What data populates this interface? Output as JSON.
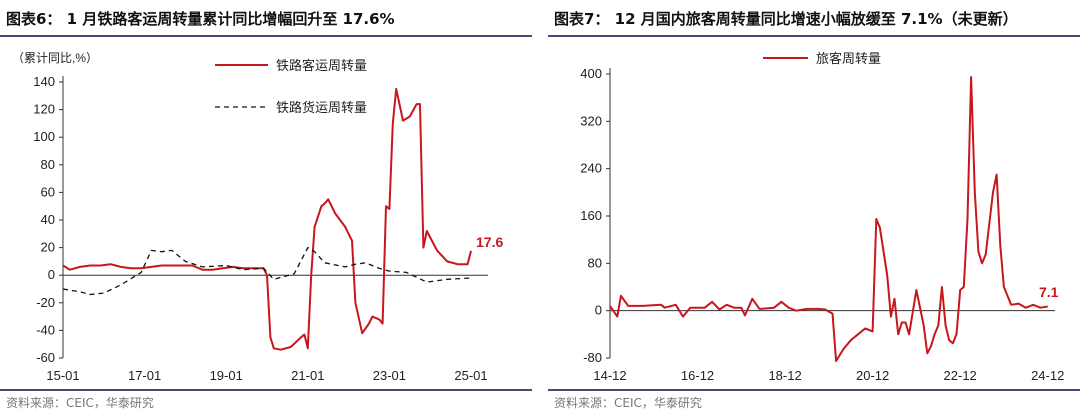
{
  "panels": [
    {
      "title": "图表6： 1 月铁路客运周转量累计同比增幅回升至 17.6%",
      "source": "资料来源：CEIC，华泰研究"
    },
    {
      "title": "图表7： 12 月国内旅客周转量同比增速小幅放缓至 7.1%（未更新）",
      "source": "资料来源：CEIC，华泰研究"
    }
  ],
  "chart_data": [
    {
      "type": "line",
      "unit_label": "（累计同比,%）",
      "x_ticks": [
        "15-01",
        "17-01",
        "19-01",
        "21-01",
        "23-01",
        "25-01"
      ],
      "ylim": [
        -60,
        140
      ],
      "y_ticks": [
        -60,
        -40,
        -20,
        0,
        20,
        40,
        60,
        80,
        100,
        120,
        140
      ],
      "legend_position": "top-right",
      "end_label": "17.6",
      "series": [
        {
          "name": "铁路客运周转量",
          "color": "#c8161d",
          "dash": false,
          "points": [
            [
              "2015-01",
              7
            ],
            [
              "2015-03",
              4
            ],
            [
              "2015-06",
              6
            ],
            [
              "2015-09",
              7
            ],
            [
              "2015-12",
              7
            ],
            [
              "2016-03",
              8
            ],
            [
              "2016-06",
              6
            ],
            [
              "2016-09",
              5
            ],
            [
              "2016-12",
              5
            ],
            [
              "2017-03",
              6
            ],
            [
              "2017-06",
              7
            ],
            [
              "2017-09",
              7
            ],
            [
              "2017-12",
              7
            ],
            [
              "2018-03",
              7
            ],
            [
              "2018-06",
              4
            ],
            [
              "2018-09",
              4
            ],
            [
              "2018-12",
              5
            ],
            [
              "2019-03",
              6
            ],
            [
              "2019-06",
              5
            ],
            [
              "2019-09",
              5
            ],
            [
              "2019-12",
              5
            ],
            [
              "2020-01",
              0
            ],
            [
              "2020-02",
              -45
            ],
            [
              "2020-03",
              -53
            ],
            [
              "2020-05",
              -54
            ],
            [
              "2020-08",
              -52
            ],
            [
              "2020-11",
              -45
            ],
            [
              "2020-12",
              -43
            ],
            [
              "2021-01",
              -53
            ],
            [
              "2021-02",
              0
            ],
            [
              "2021-03",
              35
            ],
            [
              "2021-05",
              50
            ],
            [
              "2021-06",
              52
            ],
            [
              "2021-07",
              55
            ],
            [
              "2021-09",
              45
            ],
            [
              "2021-12",
              35
            ],
            [
              "2022-02",
              25
            ],
            [
              "2022-03",
              -20
            ],
            [
              "2022-05",
              -42
            ],
            [
              "2022-07",
              -35
            ],
            [
              "2022-08",
              -30
            ],
            [
              "2022-10",
              -32
            ],
            [
              "2022-11",
              -35
            ],
            [
              "2022-12",
              50
            ],
            [
              "2023-01",
              48
            ],
            [
              "2023-02",
              110
            ],
            [
              "2023-03",
              135
            ],
            [
              "2023-05",
              112
            ],
            [
              "2023-07",
              115
            ],
            [
              "2023-09",
              124
            ],
            [
              "2023-10",
              124
            ],
            [
              "2023-11",
              20
            ],
            [
              "2023-12",
              32
            ],
            [
              "2024-03",
              18
            ],
            [
              "2024-06",
              10
            ],
            [
              "2024-09",
              8
            ],
            [
              "2024-12",
              8
            ],
            [
              "2025-01",
              17.6
            ]
          ]
        },
        {
          "name": "铁路货运周转量",
          "color": "#111111",
          "dash": true,
          "points": [
            [
              "2015-01",
              -10
            ],
            [
              "2015-06",
              -12
            ],
            [
              "2015-09",
              -14
            ],
            [
              "2016-01",
              -13
            ],
            [
              "2016-06",
              -7
            ],
            [
              "2016-12",
              2
            ],
            [
              "2017-03",
              18
            ],
            [
              "2017-06",
              17
            ],
            [
              "2017-09",
              18
            ],
            [
              "2018-01",
              10
            ],
            [
              "2018-06",
              6
            ],
            [
              "2019-01",
              7
            ],
            [
              "2019-06",
              4
            ],
            [
              "2019-12",
              5
            ],
            [
              "2020-03",
              -3
            ],
            [
              "2020-09",
              1
            ],
            [
              "2021-01",
              20
            ],
            [
              "2021-03",
              17
            ],
            [
              "2021-06",
              9
            ],
            [
              "2021-12",
              6
            ],
            [
              "2022-03",
              8
            ],
            [
              "2022-06",
              9
            ],
            [
              "2022-10",
              5
            ],
            [
              "2023-01",
              3
            ],
            [
              "2023-06",
              2
            ],
            [
              "2023-12",
              -5
            ],
            [
              "2024-06",
              -3
            ],
            [
              "2025-01",
              -2
            ]
          ]
        }
      ]
    },
    {
      "type": "line",
      "x_ticks": [
        "14-12",
        "16-12",
        "18-12",
        "20-12",
        "22-12",
        "24-12"
      ],
      "ylim": [
        -80,
        400
      ],
      "y_ticks": [
        -80,
        0,
        80,
        160,
        240,
        320,
        400
      ],
      "legend_position": "top-left",
      "end_label": "7.1",
      "series": [
        {
          "name": "旅客周转量",
          "color": "#c8161d",
          "dash": false,
          "points": [
            [
              "2014-12",
              8
            ],
            [
              "2015-02",
              -10
            ],
            [
              "2015-03",
              25
            ],
            [
              "2015-05",
              8
            ],
            [
              "2015-09",
              8
            ],
            [
              "2016-02",
              10
            ],
            [
              "2016-03",
              5
            ],
            [
              "2016-06",
              10
            ],
            [
              "2016-08",
              -10
            ],
            [
              "2016-10",
              5
            ],
            [
              "2017-02",
              5
            ],
            [
              "2017-04",
              15
            ],
            [
              "2017-06",
              2
            ],
            [
              "2017-08",
              10
            ],
            [
              "2017-10",
              5
            ],
            [
              "2017-12",
              5
            ],
            [
              "2018-01",
              -8
            ],
            [
              "2018-03",
              20
            ],
            [
              "2018-05",
              3
            ],
            [
              "2018-09",
              5
            ],
            [
              "2018-11",
              15
            ],
            [
              "2019-01",
              5
            ],
            [
              "2019-03",
              0
            ],
            [
              "2019-06",
              3
            ],
            [
              "2019-09",
              3
            ],
            [
              "2019-11",
              2
            ],
            [
              "2020-01",
              -5
            ],
            [
              "2020-02",
              -85
            ],
            [
              "2020-04",
              -65
            ],
            [
              "2020-06",
              -50
            ],
            [
              "2020-08",
              -40
            ],
            [
              "2020-10",
              -30
            ],
            [
              "2020-12",
              -35
            ],
            [
              "2021-01",
              155
            ],
            [
              "2021-02",
              140
            ],
            [
              "2021-04",
              60
            ],
            [
              "2021-05",
              -10
            ],
            [
              "2021-06",
              20
            ],
            [
              "2021-07",
              -40
            ],
            [
              "2021-08",
              -20
            ],
            [
              "2021-09",
              -20
            ],
            [
              "2021-10",
              -40
            ],
            [
              "2021-12",
              35
            ],
            [
              "2022-02",
              -25
            ],
            [
              "2022-03",
              -72
            ],
            [
              "2022-04",
              -60
            ],
            [
              "2022-05",
              -40
            ],
            [
              "2022-06",
              -25
            ],
            [
              "2022-07",
              40
            ],
            [
              "2022-08",
              -25
            ],
            [
              "2022-09",
              -50
            ],
            [
              "2022-10",
              -55
            ],
            [
              "2022-11",
              -40
            ],
            [
              "2022-12",
              35
            ],
            [
              "2023-01",
              40
            ],
            [
              "2023-02",
              155
            ],
            [
              "2023-03",
              395
            ],
            [
              "2023-04",
              200
            ],
            [
              "2023-05",
              100
            ],
            [
              "2023-06",
              80
            ],
            [
              "2023-07",
              95
            ],
            [
              "2023-09",
              200
            ],
            [
              "2023-10",
              230
            ],
            [
              "2023-11",
              110
            ],
            [
              "2023-12",
              40
            ],
            [
              "2024-02",
              10
            ],
            [
              "2024-04",
              12
            ],
            [
              "2024-06",
              5
            ],
            [
              "2024-08",
              10
            ],
            [
              "2024-10",
              5
            ],
            [
              "2024-12",
              7.1
            ]
          ]
        }
      ]
    }
  ]
}
